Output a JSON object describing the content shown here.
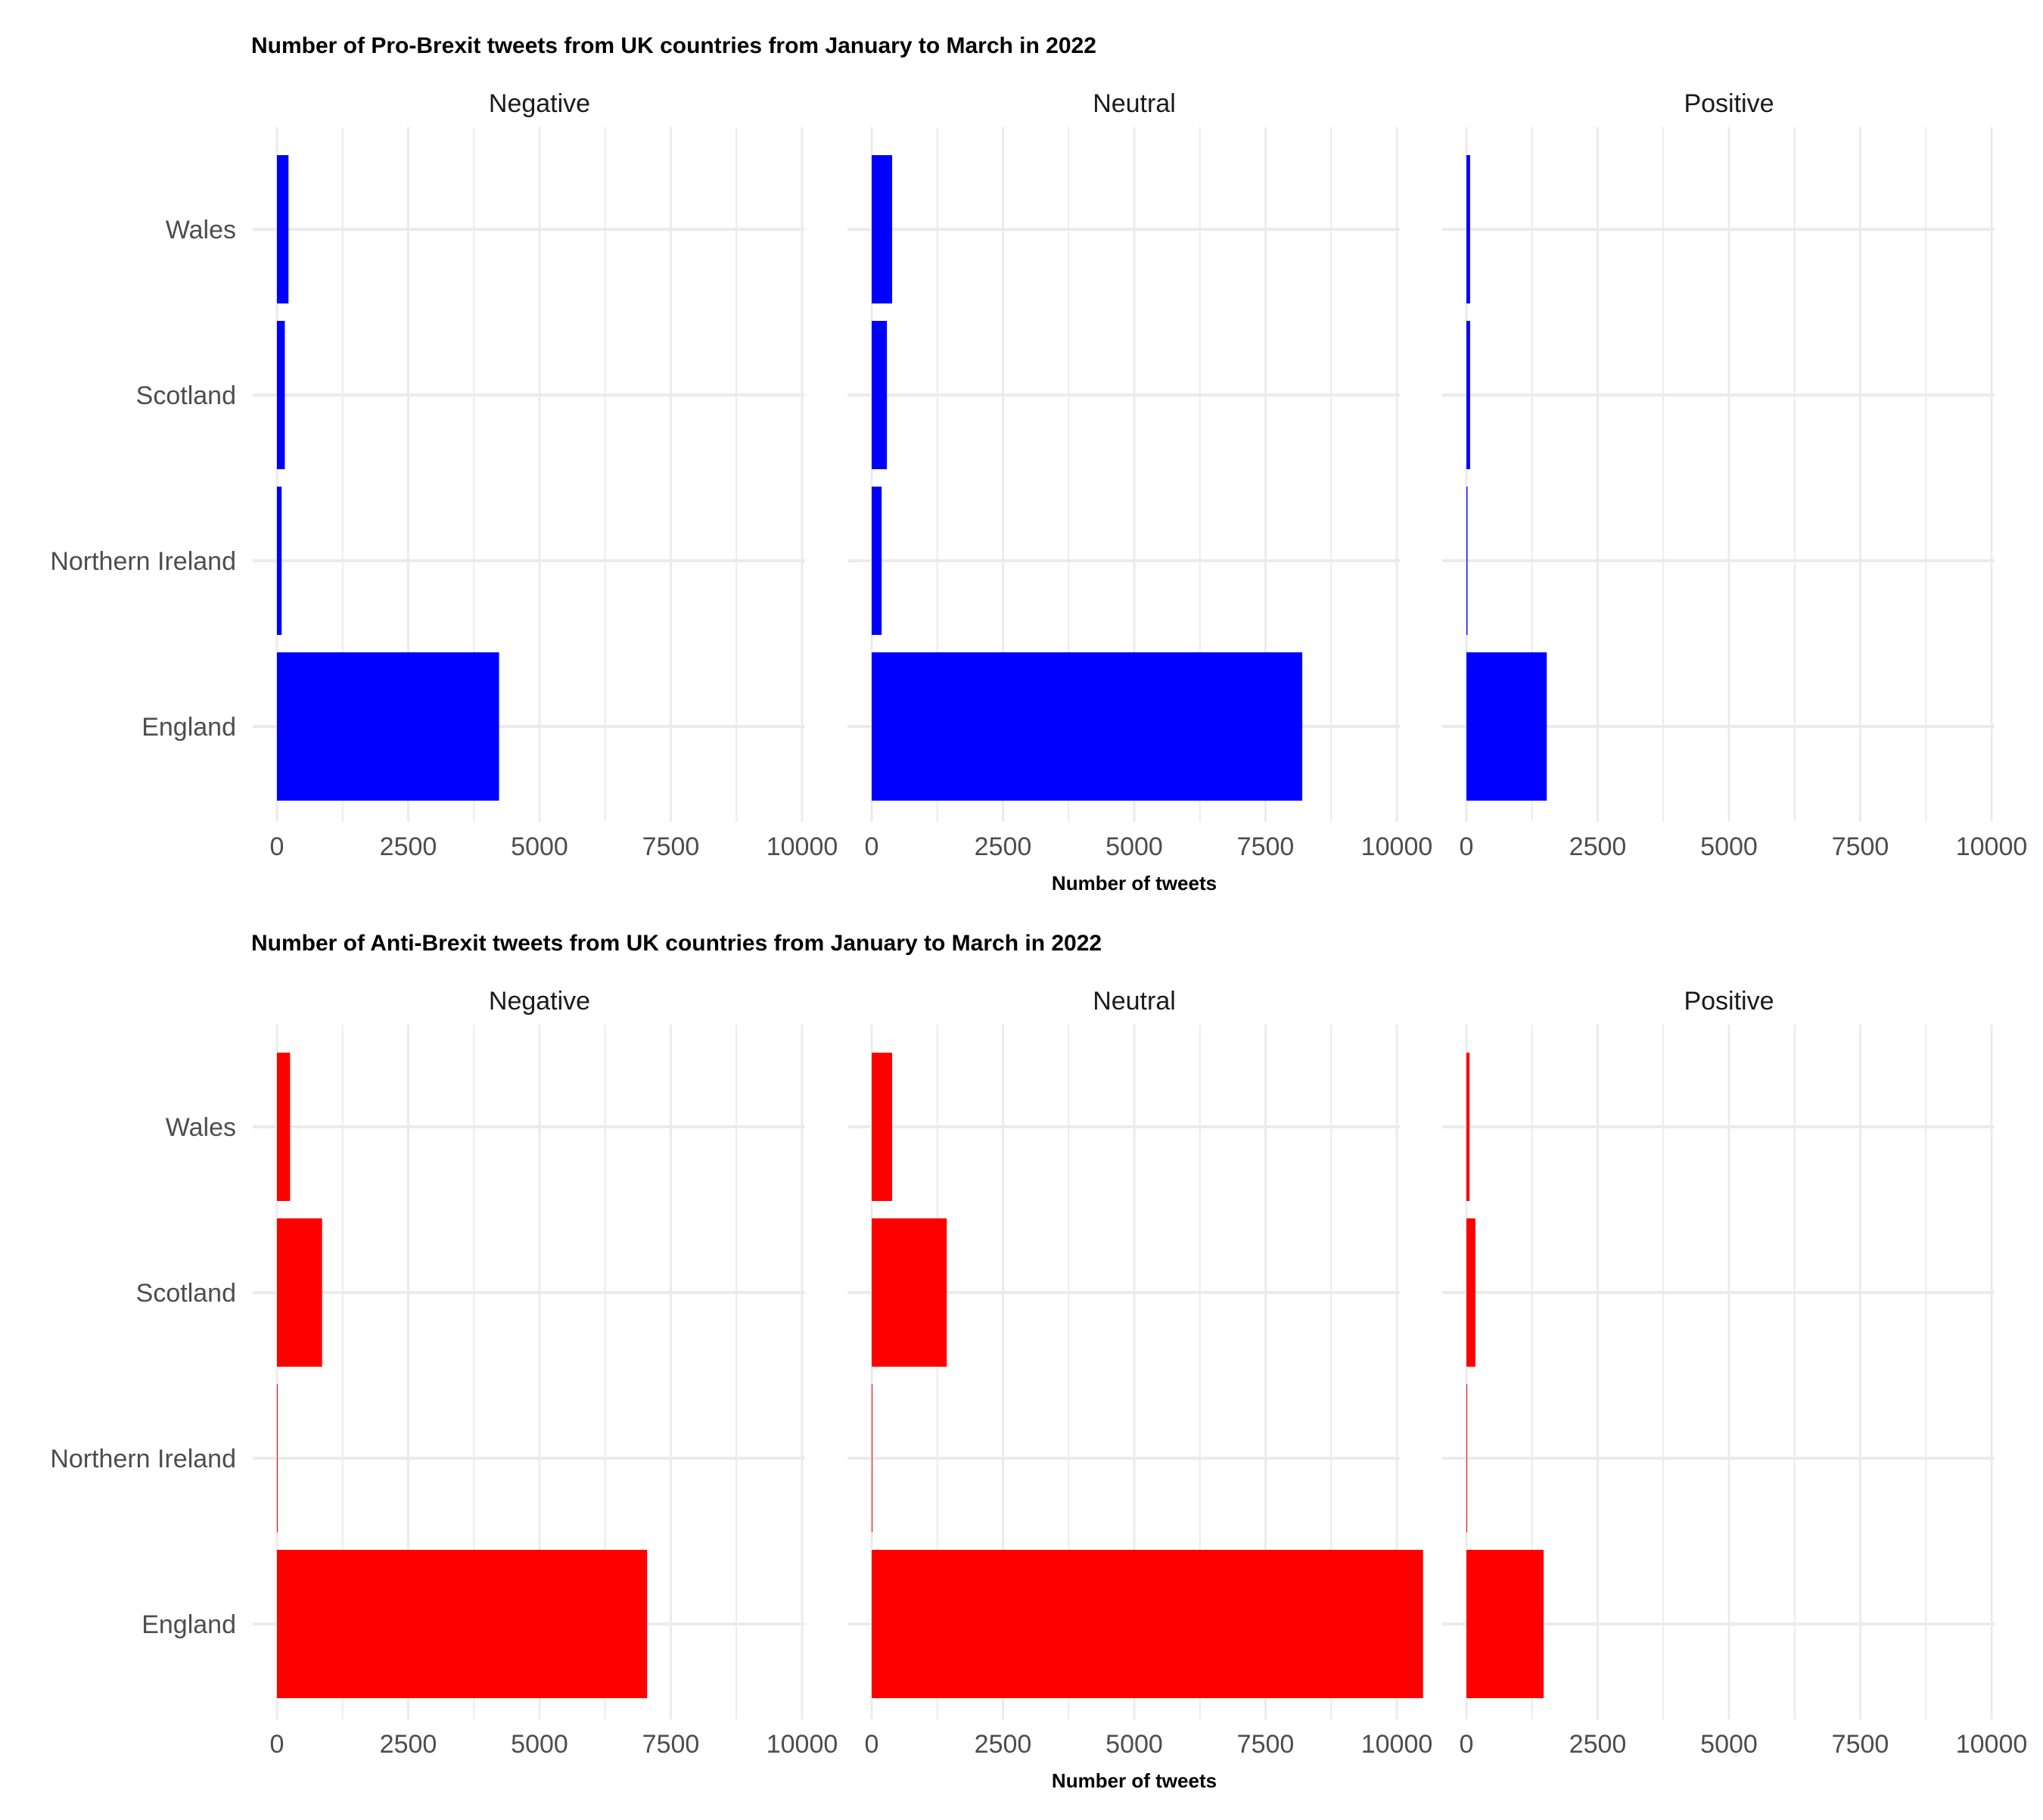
{
  "chart_data": [
    {
      "type": "bar",
      "orientation": "horizontal",
      "title": "Number of Pro-Brexit tweets from UK countries from January to March in 2022",
      "xlabel": "Number of tweets",
      "ylabel": "",
      "color": "#0000ff",
      "categories": [
        "England",
        "Northern Ireland",
        "Scotland",
        "Wales"
      ],
      "xlim": [
        0,
        10000
      ],
      "xticks": [
        "0",
        "2500",
        "5000",
        "7500",
        "10000"
      ],
      "grid": true,
      "facets": [
        {
          "name": "Negative",
          "values": [
            4230,
            90,
            150,
            220
          ]
        },
        {
          "name": "Neutral",
          "values": [
            8200,
            190,
            290,
            390
          ]
        },
        {
          "name": "Positive",
          "values": [
            1530,
            20,
            70,
            70
          ]
        }
      ]
    },
    {
      "type": "bar",
      "orientation": "horizontal",
      "title": "Number of Anti-Brexit tweets from UK countries from January to March in 2022",
      "xlabel": "Number of tweets",
      "ylabel": "",
      "color": "#ff0000",
      "categories": [
        "England",
        "Northern Ireland",
        "Scotland",
        "Wales"
      ],
      "xlim": [
        0,
        10000
      ],
      "xticks": [
        "0",
        "2500",
        "5000",
        "7500",
        "10000"
      ],
      "grid": true,
      "facets": [
        {
          "name": "Negative",
          "values": [
            7050,
            15,
            860,
            250
          ]
        },
        {
          "name": "Neutral",
          "values": [
            10500,
            15,
            1430,
            390
          ]
        },
        {
          "name": "Positive",
          "values": [
            1470,
            8,
            170,
            60
          ]
        }
      ]
    }
  ]
}
